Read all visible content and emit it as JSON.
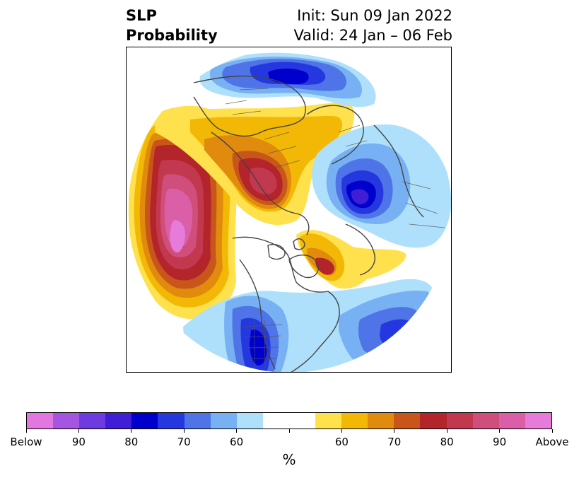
{
  "title": {
    "left_line1": "SLP",
    "left_line2": "Probability",
    "right_line1": "Init: Sun 09 Jan 2022",
    "right_line2": "Valid: 24 Jan – 06 Feb"
  },
  "map": {
    "projection": "north-polar-stereographic",
    "background": "#ffffff",
    "coastline_color": "#444444"
  },
  "colorbar": {
    "units": "%",
    "colors": [
      "#e377e2",
      "#a555e0",
      "#6e3be0",
      "#3f1ed6",
      "#0000cc",
      "#2538e0",
      "#4f74e8",
      "#78b1f3",
      "#aee0fb",
      "#ffffff",
      "#ffffff",
      "#ffe14d",
      "#f2b805",
      "#e08a0e",
      "#c8561b",
      "#b3242b",
      "#c2384f",
      "#d04e7c",
      "#db5fa6",
      "#e67bd9"
    ],
    "tick_labels": [
      "Below",
      "90",
      "80",
      "70",
      "60",
      "",
      "60",
      "70",
      "80",
      "90",
      "Above"
    ]
  }
}
